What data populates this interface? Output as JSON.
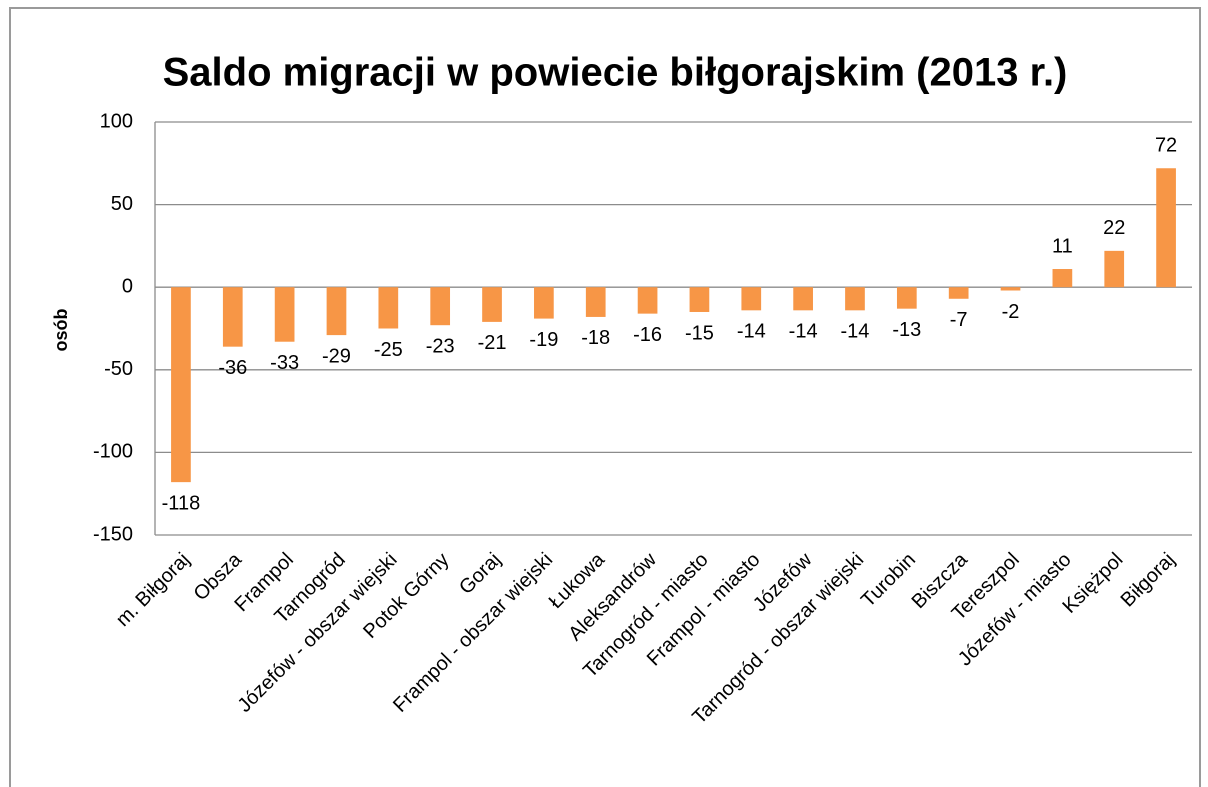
{
  "chart_data": {
    "type": "bar",
    "title": "Saldo migracji w powiecie biłgorajskim (2013 r.)",
    "y_label": "osób",
    "categories": [
      "m. Biłgoraj",
      "Obsza",
      "Frampol",
      "Tarnogród",
      "Józefów - obszar wiejski",
      "Potok Górny",
      "Goraj",
      "Frampol - obszar wiejski",
      "Łukowa",
      "Aleksandrów",
      "Tarnogród - miasto",
      "Frampol - miasto",
      "Józefów",
      "Tarnogród - obszar wiejski",
      "Turobin",
      "Biszcza",
      "Tereszpol",
      "Józefów - miasto",
      "Księżpol",
      "Biłgoraj"
    ],
    "values": [
      -118,
      -36,
      -33,
      -29,
      -25,
      -23,
      -21,
      -19,
      -18,
      -16,
      -15,
      -14,
      -14,
      -14,
      -13,
      -7,
      -2,
      11,
      22,
      72
    ],
    "color": "#f79646",
    "ylim": [
      -150,
      100
    ],
    "yticks": [
      -150,
      -100,
      -50,
      0,
      50,
      100
    ],
    "grid": true
  }
}
